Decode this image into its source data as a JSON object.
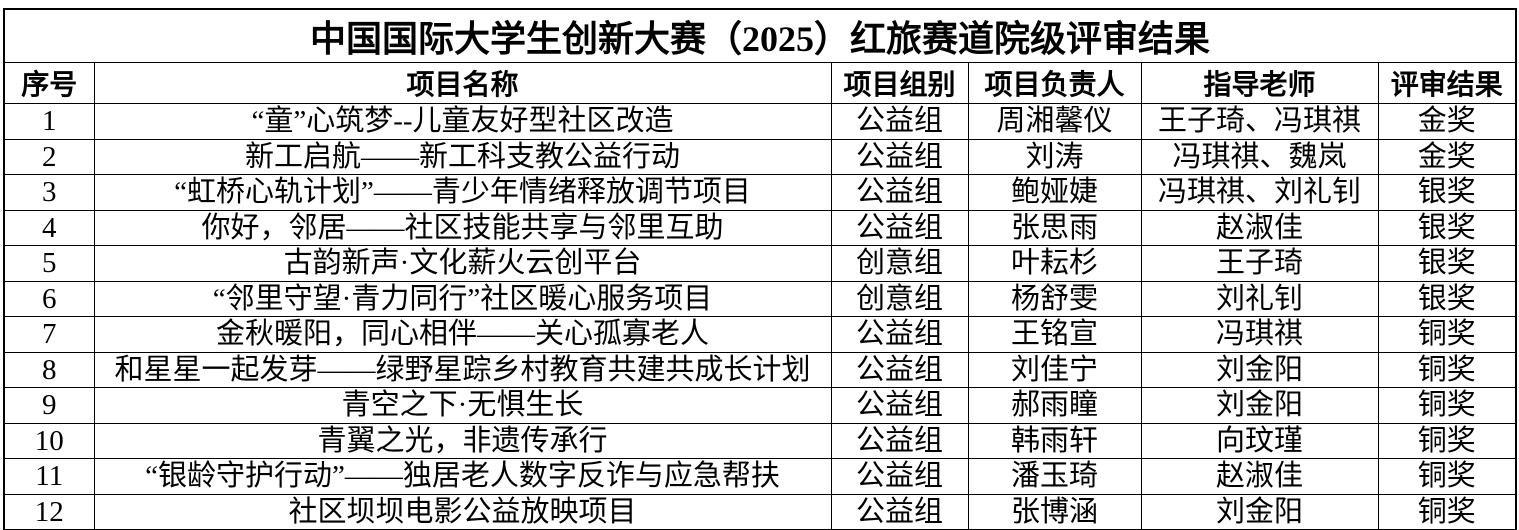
{
  "table": {
    "title": "中国国际大学生创新大赛（2025）红旅赛道院级评审结果",
    "columns": [
      "序号",
      "项目名称",
      "项目组别",
      "项目负责人",
      "指导老师",
      "评审结果"
    ],
    "rows": [
      [
        "1",
        "“童”心筑梦--儿童友好型社区改造",
        "公益组",
        "周湘馨仪",
        "王子琦、冯琪祺",
        "金奖"
      ],
      [
        "2",
        "新工启航——新工科支教公益行动",
        "公益组",
        "刘涛",
        "冯琪祺、魏岚",
        "金奖"
      ],
      [
        "3",
        "“虹桥心轨计划”——青少年情绪释放调节项目",
        "公益组",
        "鲍娅婕",
        "冯琪祺、刘礼钊",
        "银奖"
      ],
      [
        "4",
        "你好，邻居——社区技能共享与邻里互助",
        "公益组",
        "张思雨",
        "赵淑佳",
        "银奖"
      ],
      [
        "5",
        "古韵新声·文化薪火云创平台",
        "创意组",
        "叶耘杉",
        "王子琦",
        "银奖"
      ],
      [
        "6",
        "“邻里守望·青力同行”社区暖心服务项目",
        "创意组",
        "杨舒雯",
        "刘礼钊",
        "银奖"
      ],
      [
        "7",
        "金秋暖阳，同心相伴——关心孤寡老人",
        "公益组",
        "王铭宣",
        "冯琪祺",
        "铜奖"
      ],
      [
        "8",
        "和星星一起发芽——绿野星踪乡村教育共建共成长计划",
        "公益组",
        "刘佳宁",
        "刘金阳",
        "铜奖"
      ],
      [
        "9",
        "青空之下·无惧生长",
        "公益组",
        "郝雨瞳",
        "刘金阳",
        "铜奖"
      ],
      [
        "10",
        "青翼之光，非遗传承行",
        "公益组",
        "韩雨轩",
        "向玟瑾",
        "铜奖"
      ],
      [
        "11",
        "“银龄守护行动”——独居老人数字反诈与应急帮扶",
        "公益组",
        "潘玉琦",
        "赵淑佳",
        "铜奖"
      ],
      [
        "12",
        "社区坝坝电影公益放映项目",
        "公益组",
        "张博涵",
        "刘金阳",
        "铜奖"
      ]
    ]
  }
}
